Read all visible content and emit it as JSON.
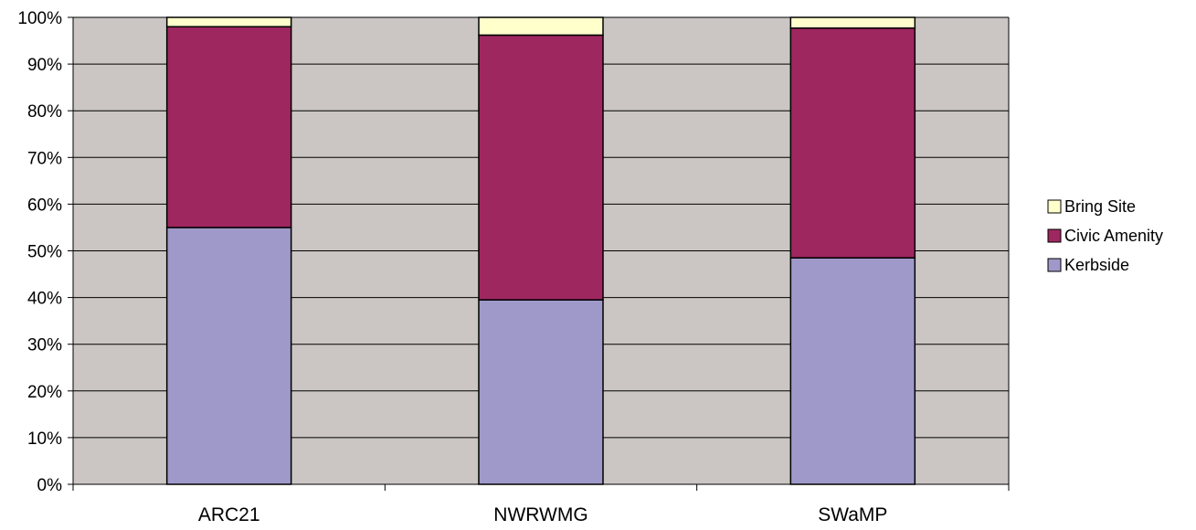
{
  "chart_data": {
    "type": "bar",
    "stacked": true,
    "title": "",
    "xlabel": "",
    "ylabel": "",
    "ylim": [
      0,
      100
    ],
    "yticks": [
      "0%",
      "10%",
      "20%",
      "30%",
      "40%",
      "50%",
      "60%",
      "70%",
      "80%",
      "90%",
      "100%"
    ],
    "categories": [
      "ARC21",
      "NWRWMG",
      "SWaMP"
    ],
    "series": [
      {
        "name": "Kerbside",
        "values": [
          55,
          39.5,
          48.5
        ],
        "color": "#9f99c9"
      },
      {
        "name": "Civic Amenity",
        "values": [
          43,
          56.7,
          49.2
        ],
        "color": "#9e2760"
      },
      {
        "name": "Bring Site",
        "values": [
          2,
          3.8,
          2.3
        ],
        "color": "#ffffcc"
      }
    ],
    "legend": {
      "position": "right",
      "order": [
        "Bring Site",
        "Civic Amenity",
        "Kerbside"
      ]
    },
    "grid": true,
    "plot_background": "#cbc6c3"
  }
}
